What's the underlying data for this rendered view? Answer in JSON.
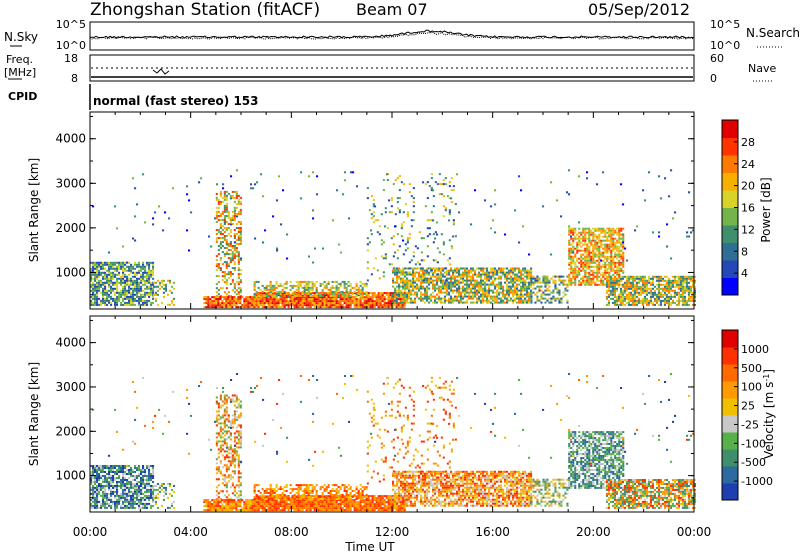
{
  "header": {
    "station": "Zhongshan Station (fitACF)",
    "beam": "Beam 07",
    "date": "05/Sep/2012"
  },
  "top_panels": {
    "nsky_label": "N.Sky",
    "nsky_ticks": [
      "10^5",
      "10^0"
    ],
    "nsearch_label": "N.Search",
    "nsearch_ticks": [
      "10^5",
      "10^0"
    ],
    "freq_label": "Freq.",
    "freq_unit": "[MHz]",
    "freq_ticks": [
      "18",
      "8"
    ],
    "nave_label": "Nave",
    "nave_ticks": [
      "60",
      "0"
    ],
    "cpid_label": "CPID",
    "cpid_text": "normal (fast stereo) 153"
  },
  "chart_data": [
    {
      "type": "heatmap",
      "name": "power",
      "ylabel": "Slant Range [km]",
      "yticks": [
        "4000",
        "3000",
        "2000",
        "1000"
      ],
      "ylim": [
        180,
        4600
      ],
      "x_ticks": [
        "00:00",
        "04:00",
        "08:00",
        "12:00",
        "16:00",
        "20:00",
        "00:00"
      ],
      "xlim_hours": [
        0,
        24
      ],
      "colorbar_label": "Power [dB]",
      "colorbar_ticks": [
        "28",
        "24",
        "20",
        "16",
        "12",
        "8",
        "4"
      ],
      "colorbar_range": [
        0,
        32
      ],
      "colorbar_colors": [
        "#0000ff",
        "#2448b8",
        "#2f6f95",
        "#3f8e6c",
        "#73b54a",
        "#d9d228",
        "#f7b000",
        "#ff7a00",
        "#ff3300",
        "#e00000"
      ]
    },
    {
      "type": "heatmap",
      "name": "velocity",
      "ylabel": "Slant Range [km]",
      "yticks": [
        "4000",
        "3000",
        "2000",
        "1000"
      ],
      "ylim": [
        180,
        4600
      ],
      "x_ticks": [
        "00:00",
        "04:00",
        "08:00",
        "12:00",
        "16:00",
        "20:00",
        "00:00"
      ],
      "xlim_hours": [
        0,
        24
      ],
      "colorbar_label": "Velocity [m s^-1]",
      "colorbar_ticks": [
        "1000",
        "500",
        "100",
        "25",
        "-25",
        "-100",
        "-500",
        "-1000"
      ],
      "colorbar_colors": [
        "#1f3fb0",
        "#2e6aa0",
        "#3f8f6a",
        "#58b04a",
        "#c8c8c8",
        "#f0c000",
        "#ff9a00",
        "#ff6a00",
        "#ff3000",
        "#e00000"
      ]
    }
  ],
  "xlabel": "Time UT"
}
